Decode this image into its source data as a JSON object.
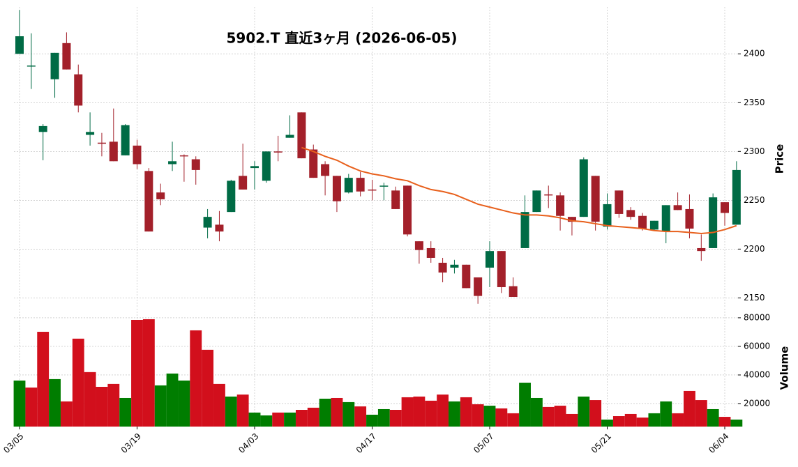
{
  "chart_data": {
    "type": "candlestick",
    "title": "5902.T  直近3ヶ月  (2026-06-05)",
    "ylabel": "Price",
    "y2label": "Volume",
    "categories": [
      "03/05",
      null,
      null,
      null,
      null,
      null,
      null,
      null,
      null,
      null,
      "03/19",
      null,
      null,
      null,
      null,
      null,
      null,
      null,
      null,
      null,
      "04/03",
      null,
      null,
      null,
      null,
      null,
      null,
      null,
      null,
      null,
      "04/17",
      null,
      null,
      null,
      null,
      null,
      null,
      null,
      null,
      null,
      "05/07",
      null,
      null,
      null,
      null,
      null,
      null,
      null,
      null,
      null,
      "05/21",
      null,
      null,
      null,
      null,
      null,
      null,
      null,
      null,
      null,
      "06/04",
      null
    ],
    "open": [
      2400,
      2387,
      2320,
      2374,
      2411,
      2379,
      2317,
      2309,
      2310,
      2296,
      2306,
      2280,
      2258,
      2287,
      2296,
      2292,
      2222,
      2225,
      2238,
      2275,
      2283,
      2270,
      2300,
      2314,
      2340,
      2302,
      2287,
      2275,
      2258,
      2273,
      2261,
      2264,
      2260,
      2265,
      2208,
      2201,
      2186,
      2181,
      2184,
      2171,
      2181,
      2198,
      2162,
      2201,
      2238,
      2256,
      2255,
      2233,
      2233,
      2275,
      2223,
      2260,
      2240,
      2234,
      2220,
      2218,
      2245,
      2241,
      2201,
      2201,
      2248,
      2225
    ],
    "high": [
      2445,
      2421,
      2328,
      2401,
      2422,
      2389,
      2340,
      2319,
      2344,
      2328,
      2312,
      2283,
      2267,
      2310,
      2297,
      2295,
      2241,
      2239,
      2271,
      2308,
      2290,
      2300,
      2316,
      2337,
      2340,
      2307,
      2290,
      2275,
      2277,
      2279,
      2271,
      2268,
      2264,
      2265,
      2208,
      2208,
      2191,
      2189,
      2184,
      2171,
      2208,
      2198,
      2171,
      2255,
      2260,
      2265,
      2258,
      2233,
      2294,
      2275,
      2257,
      2260,
      2243,
      2237,
      2229,
      2245,
      2258,
      2256,
      2215,
      2257,
      2248,
      2290
    ],
    "low": [
      2400,
      2364,
      2291,
      2355,
      2384,
      2340,
      2306,
      2295,
      2290,
      2296,
      2282,
      2218,
      2245,
      2280,
      2269,
      2266,
      2211,
      2208,
      2238,
      2261,
      2261,
      2268,
      2290,
      2314,
      2293,
      2273,
      2255,
      2238,
      2257,
      2254,
      2250,
      2250,
      2241,
      2213,
      2185,
      2186,
      2166,
      2175,
      2160,
      2144,
      2161,
      2155,
      2151,
      2201,
      2238,
      2242,
      2219,
      2214,
      2233,
      2219,
      2220,
      2232,
      2230,
      2219,
      2219,
      2206,
      2240,
      2211,
      2188,
      2201,
      2224,
      2225
    ],
    "close": [
      2418,
      2388,
      2326,
      2401,
      2384,
      2347,
      2320,
      2308,
      2290,
      2327,
      2287,
      2218,
      2251,
      2290,
      2295,
      2281,
      2233,
      2218,
      2270,
      2261,
      2285,
      2300,
      2299,
      2317,
      2293,
      2273,
      2275,
      2249,
      2273,
      2259,
      2260,
      2265,
      2241,
      2215,
      2199,
      2191,
      2176,
      2184,
      2160,
      2152,
      2198,
      2161,
      2151,
      2238,
      2260,
      2255,
      2234,
      2228,
      2292,
      2228,
      2246,
      2236,
      2233,
      2221,
      2229,
      2245,
      2240,
      2221,
      2198,
      2253,
      2237,
      2281
    ],
    "ma": [
      null,
      null,
      null,
      null,
      null,
      null,
      null,
      null,
      null,
      null,
      null,
      null,
      null,
      null,
      null,
      null,
      null,
      null,
      null,
      null,
      null,
      null,
      null,
      null,
      2304,
      2300,
      2295,
      2291,
      2285,
      2280,
      2277,
      2275,
      2272,
      2270,
      2265,
      2261,
      2259,
      2256,
      2251,
      2246,
      2243,
      2240,
      2237,
      2235,
      2235,
      2234,
      2232,
      2229,
      2228,
      2226,
      2224,
      2223,
      2222,
      2221,
      2219,
      2218,
      2218,
      2217,
      2216,
      2217,
      2220,
      2224
    ],
    "volume": [
      36100,
      31200,
      70200,
      37100,
      21500,
      65400,
      42000,
      31700,
      33700,
      23900,
      78500,
      79000,
      32700,
      41000,
      36100,
      71200,
      57600,
      33700,
      24900,
      26300,
      13700,
      11700,
      13700,
      13700,
      15600,
      17100,
      23400,
      23900,
      21000,
      18000,
      12200,
      16100,
      15600,
      24400,
      24900,
      22000,
      26300,
      21500,
      24400,
      19500,
      18500,
      16600,
      13200,
      34600,
      23900,
      17600,
      18500,
      12700,
      24900,
      22400,
      8800,
      11200,
      12700,
      10200,
      13200,
      21500,
      13200,
      28800,
      22400,
      16100,
      10700,
      8800
    ],
    "ylim": [
      2141,
      2448
    ],
    "yticks": [
      2150,
      2200,
      2250,
      2300,
      2350,
      2400
    ],
    "y2lim": [
      3900,
      86300
    ],
    "y2ticks": [
      20000,
      40000,
      60000,
      80000
    ],
    "up_color": "#006b45",
    "down_color": "#a3202a",
    "volume_up_color": "#007d00",
    "volume_down_color": "#d20f1c",
    "ma_color": "#e8601c",
    "grid": true
  }
}
